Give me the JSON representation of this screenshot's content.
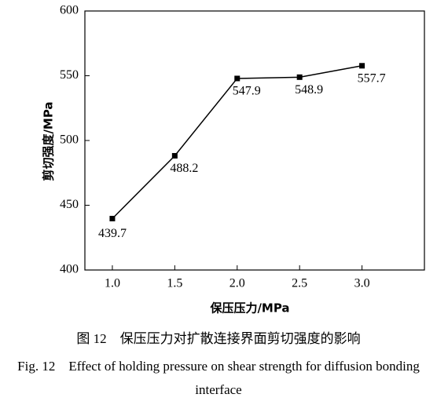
{
  "chart_data": {
    "type": "line",
    "x_label": "保压压力/MPa",
    "y_label": "剪切强度/MPa",
    "caption_cn": "图 12　保压压力对扩散连接界面剪切强度的影响",
    "caption_en": "Fig. 12　Effect of holding pressure on shear strength for diffusion bonding interface",
    "x": [
      1.0,
      1.5,
      2.0,
      2.5,
      3.0
    ],
    "series": [
      {
        "color": "#000000",
        "values": [
          439.7,
          488.2,
          547.9,
          548.9,
          557.7
        ]
      }
    ],
    "xlim": [
      0.78,
      3.5
    ],
    "xticks": [
      {
        "value": 1.0,
        "label": "1.0"
      },
      {
        "value": 1.5,
        "label": "1.5"
      },
      {
        "value": 2.0,
        "label": "2.0"
      },
      {
        "value": 2.5,
        "label": "2.5"
      },
      {
        "value": 3.0,
        "label": "3.0"
      }
    ],
    "ylim": [
      400,
      600
    ],
    "yticks": [
      400,
      450,
      500,
      550,
      600
    ]
  }
}
